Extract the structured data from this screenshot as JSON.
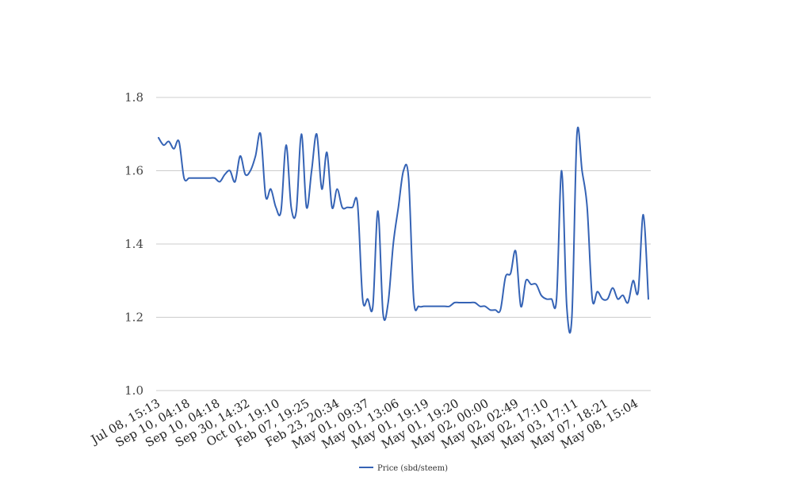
{
  "chart_data": {
    "type": "line",
    "title": "",
    "xlabel": "",
    "ylabel": "",
    "ylim": [
      1.0,
      1.8
    ],
    "yticks": [
      "1.0",
      "1.2",
      "1.4",
      "1.6",
      "1.8"
    ],
    "grid": true,
    "legend_placement": "bottom-center",
    "x_tick_labels": [
      "Jul 08, 15:13",
      "Sep 10, 04:18",
      "Sep 10, 04:18",
      "Sep 30, 14:32",
      "Oct 01, 19:10",
      "Feb 07, 19:25",
      "Feb 23, 20:34",
      "May 01, 09:37",
      "May 01, 13:06",
      "May 01, 19:19",
      "May 01, 19:20",
      "May 02, 00:00",
      "May 02, 02:49",
      "May 02, 17:10",
      "May 03, 17:11",
      "May 07, 18:21",
      "May 08, 15:04"
    ],
    "series": [
      {
        "name": "Price (sbd/steem)",
        "color": "#3563b5",
        "values": [
          1.69,
          1.67,
          1.68,
          1.66,
          1.68,
          1.58,
          1.58,
          1.58,
          1.58,
          1.58,
          1.58,
          1.58,
          1.57,
          1.59,
          1.6,
          1.57,
          1.64,
          1.59,
          1.6,
          1.64,
          1.7,
          1.53,
          1.55,
          1.5,
          1.49,
          1.67,
          1.5,
          1.49,
          1.7,
          1.5,
          1.6,
          1.7,
          1.55,
          1.65,
          1.5,
          1.55,
          1.5,
          1.5,
          1.5,
          1.51,
          1.25,
          1.25,
          1.23,
          1.49,
          1.21,
          1.24,
          1.4,
          1.5,
          1.6,
          1.58,
          1.25,
          1.23,
          1.23,
          1.23,
          1.23,
          1.23,
          1.23,
          1.23,
          1.24,
          1.24,
          1.24,
          1.24,
          1.24,
          1.23,
          1.23,
          1.22,
          1.22,
          1.22,
          1.31,
          1.32,
          1.38,
          1.23,
          1.3,
          1.29,
          1.29,
          1.26,
          1.25,
          1.25,
          1.25,
          1.6,
          1.23,
          1.2,
          1.7,
          1.6,
          1.5,
          1.25,
          1.27,
          1.25,
          1.25,
          1.28,
          1.25,
          1.26,
          1.24,
          1.3,
          1.27,
          1.48,
          1.25
        ]
      }
    ]
  }
}
